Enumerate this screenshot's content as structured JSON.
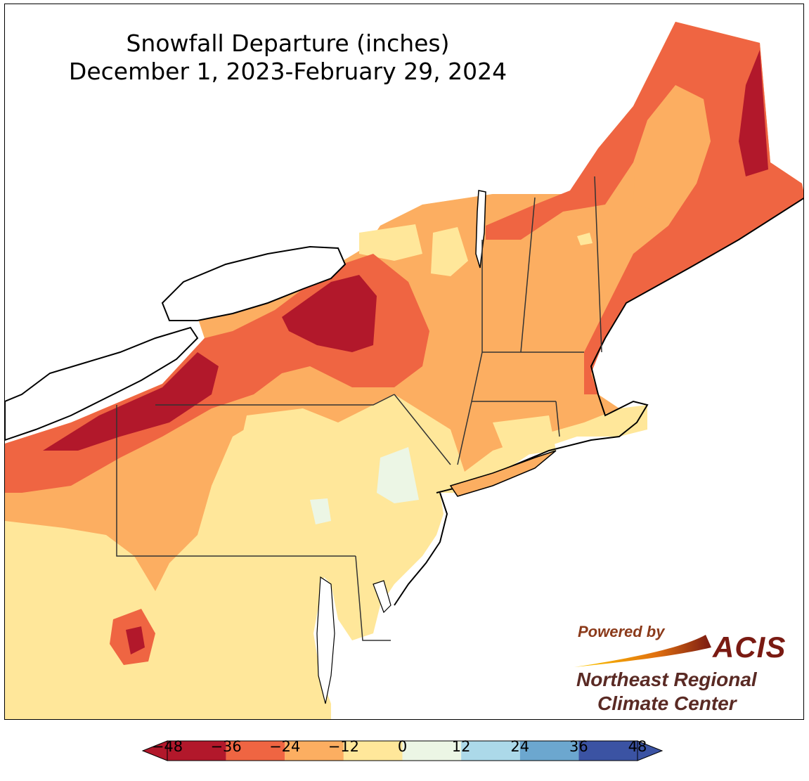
{
  "title": {
    "line1": "Snowfall Departure (inches)",
    "line2": "December 1, 2023-February 29, 2024"
  },
  "legend": {
    "ticks": [
      "−48",
      "−36",
      "−24",
      "−12",
      "0",
      "12",
      "24",
      "36",
      "48"
    ],
    "colors": [
      "#b2182b",
      "#ef6542",
      "#fcae61",
      "#ffe79a",
      "#ecf6e5",
      "#acd9e9",
      "#6ca7cf",
      "#3b53a3"
    ],
    "extend_low_color": "#b2182b",
    "extend_high_color": "#3b53a3"
  },
  "logo": {
    "powered_by": "Powered by",
    "acis": "ACIS",
    "org_line1": "Northeast Regional",
    "org_line2": "Climate Center"
  }
}
